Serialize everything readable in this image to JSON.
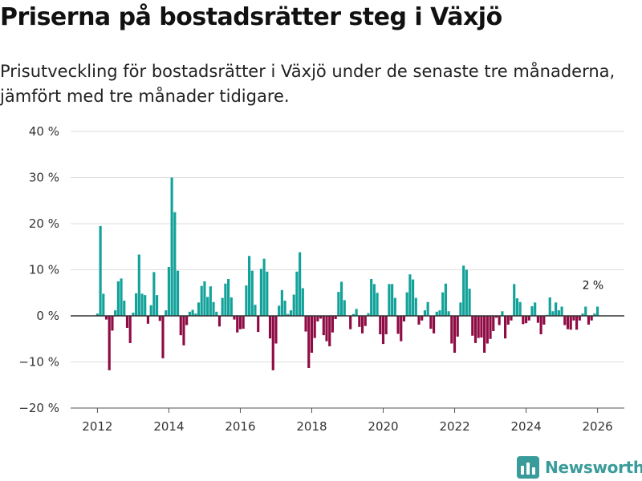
{
  "title": "Priserna på bostadsrätter steg i Växjö",
  "subtitle": "Prisutveckling för bostadsrätter i Växjö under de senaste tre månaderna, jämfört med tre månader tidigare.",
  "brand": {
    "name": "Newsworthy",
    "color": "#3a9b9b"
  },
  "colors": {
    "positive": "#13a29a",
    "negative": "#8e0b44",
    "grid": "#dddddd",
    "axis": "#333333"
  },
  "chart_data": {
    "type": "bar",
    "title": "Priserna på bostadsrätter steg i Växjö",
    "xlabel": "",
    "ylabel": "",
    "ylim": [
      -20,
      40
    ],
    "xlim": [
      2011.25,
      2026.75
    ],
    "y_ticks": [
      -20,
      -10,
      0,
      10,
      20,
      30,
      40
    ],
    "y_tick_labels": [
      "−20 %",
      "−10 %",
      "0 %",
      "10 %",
      "20 %",
      "30 %",
      "40 %"
    ],
    "x_ticks": [
      2012,
      2014,
      2016,
      2018,
      2020,
      2022,
      2024,
      2026
    ],
    "x_tick_labels": [
      "2012",
      "2014",
      "2016",
      "2018",
      "2020",
      "2022",
      "2024",
      "2026"
    ],
    "annotation": {
      "text": "2 %",
      "x": 2025.917,
      "value": 2
    },
    "start": 2012.0,
    "step": 0.08333,
    "values": [
      0.5,
      19.5,
      4.8,
      -0.8,
      -11.8,
      -3.2,
      1.2,
      7.5,
      8.1,
      3.3,
      -2.6,
      -5.9,
      0.7,
      4.9,
      13.3,
      4.8,
      4.5,
      -1.7,
      2.3,
      9.5,
      4.5,
      -1.1,
      -9.2,
      1.2,
      10.6,
      30.0,
      22.5,
      9.8,
      -4.2,
      -6.4,
      -2.0,
      0.9,
      1.3,
      0.5,
      2.9,
      6.5,
      7.5,
      4.1,
      6.4,
      3.0,
      0.9,
      -2.3,
      3.9,
      7.0,
      8.0,
      4.0,
      -0.8,
      -3.6,
      -2.9,
      -2.8,
      6.6,
      13.0,
      9.8,
      2.4,
      -3.5,
      10.2,
      12.4,
      9.6,
      -4.9,
      -11.8,
      -6.0,
      2.2,
      5.6,
      3.3,
      0.4,
      1.2,
      4.6,
      9.6,
      13.8,
      6.0,
      -3.4,
      -11.3,
      -8.0,
      -4.8,
      -1.2,
      -0.6,
      -4.2,
      -5.5,
      -6.6,
      -3.6,
      -0.7,
      5.2,
      7.4,
      3.4,
      0.0,
      -2.9,
      0.4,
      1.5,
      -2.4,
      -3.8,
      -2.2,
      0.6,
      8.0,
      6.9,
      5.0,
      -4.0,
      -6.1,
      -4.0,
      6.9,
      6.9,
      3.9,
      -3.9,
      -5.5,
      -1.2,
      5.1,
      9.0,
      7.9,
      3.9,
      -1.9,
      -1.0,
      1.2,
      3.0,
      -2.8,
      -3.8,
      0.9,
      1.2,
      5.1,
      7.0,
      1.0,
      -6.0,
      -8.0,
      -4.5,
      2.9,
      10.9,
      10.0,
      5.9,
      -4.3,
      -5.9,
      -4.8,
      -4.7,
      -8.0,
      -6.0,
      -5.0,
      -3.3,
      -0.4,
      -2.0,
      1.0,
      -4.9,
      -1.9,
      -1.0,
      6.9,
      3.8,
      3.0,
      -1.8,
      -1.6,
      -1.0,
      2.1,
      2.9,
      -1.5,
      -4.0,
      -1.9,
      0.2,
      4.0,
      1.0,
      2.9,
      1.2,
      2.0,
      -2.0,
      -2.9,
      -3.0,
      -1.0,
      -3.0,
      -1.0,
      0.5,
      2.0,
      -1.9,
      -1.0,
      0.5,
      2.0
    ]
  }
}
